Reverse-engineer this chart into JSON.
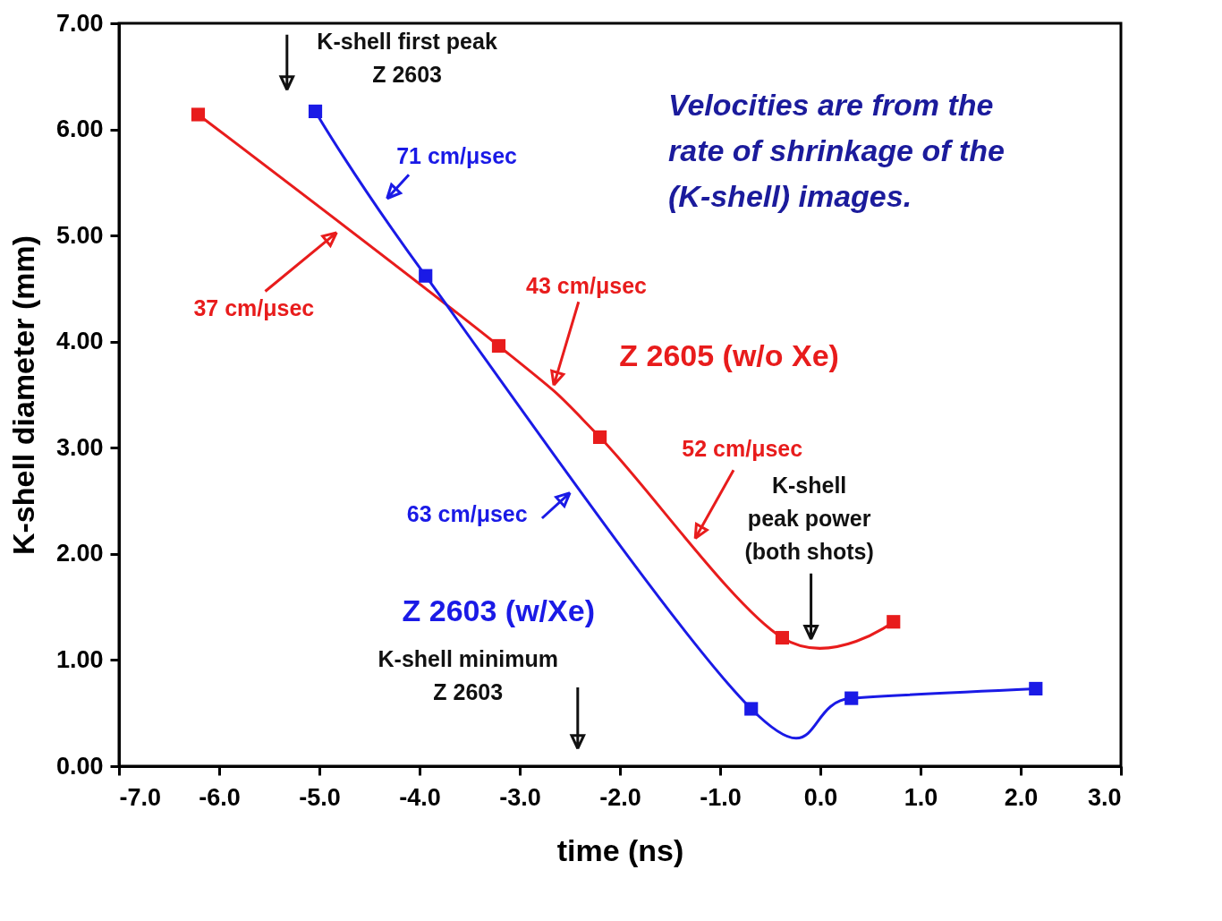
{
  "chart_data": {
    "type": "line",
    "xlabel": "time (ns)",
    "ylabel": "K-shell diameter (mm)",
    "xlim": [
      -7,
      3
    ],
    "ylim": [
      0,
      7
    ],
    "xticks": [
      {
        "value": -7,
        "label": "-7.0"
      },
      {
        "value": -6,
        "label": "-6.0"
      },
      {
        "value": -5,
        "label": "-5.0"
      },
      {
        "value": -4,
        "label": "-4.0"
      },
      {
        "value": -3,
        "label": "-3.0"
      },
      {
        "value": -2,
        "label": "-2.0"
      },
      {
        "value": -1,
        "label": "-1.0"
      },
      {
        "value": 0,
        "label": "0.0"
      },
      {
        "value": 1,
        "label": "1.0"
      },
      {
        "value": 2,
        "label": "2.0"
      },
      {
        "value": 3,
        "label": "3.0"
      }
    ],
    "yticks": [
      {
        "value": 0,
        "label": "0.00"
      },
      {
        "value": 1,
        "label": "1.00"
      },
      {
        "value": 2,
        "label": "2.00"
      },
      {
        "value": 3,
        "label": "3.00"
      },
      {
        "value": 4,
        "label": "4.00"
      },
      {
        "value": 5,
        "label": "5.00"
      },
      {
        "value": 6,
        "label": "6.00"
      },
      {
        "value": 7,
        "label": "7.00"
      }
    ],
    "series": [
      {
        "name": "Z 2605 (w/o Xe)",
        "color": "#e81c1c",
        "x": [
          -6.21,
          -3.21,
          -2.2,
          -0.38,
          0.73
        ],
        "values": [
          6.14,
          3.96,
          3.1,
          1.21,
          1.36
        ]
      },
      {
        "name": "Z 2603 (w/Xe)",
        "color": "#1a1ae6",
        "x": [
          -5.04,
          -3.94,
          -0.69,
          0.31,
          2.15
        ],
        "values": [
          6.17,
          4.62,
          0.54,
          0.64,
          0.73
        ]
      }
    ],
    "marker": "square",
    "line_style": "solid",
    "grid": false,
    "legend": false,
    "annotations": [
      "K-shell first peak\nZ 2603",
      "71 cm/μsec",
      "37 cm/μsec",
      {
        "text": "43 cm/μsec",
        "x": -2.66,
        "y": 3.59
      },
      "52 cm/μsec",
      "63 cm/μsec",
      "K-shell\npeak power\n(both shots)",
      "K-shell minimum\nZ 2603",
      "Velocities are from the rate of shrinkage of the (K-shell) images."
    ]
  }
}
